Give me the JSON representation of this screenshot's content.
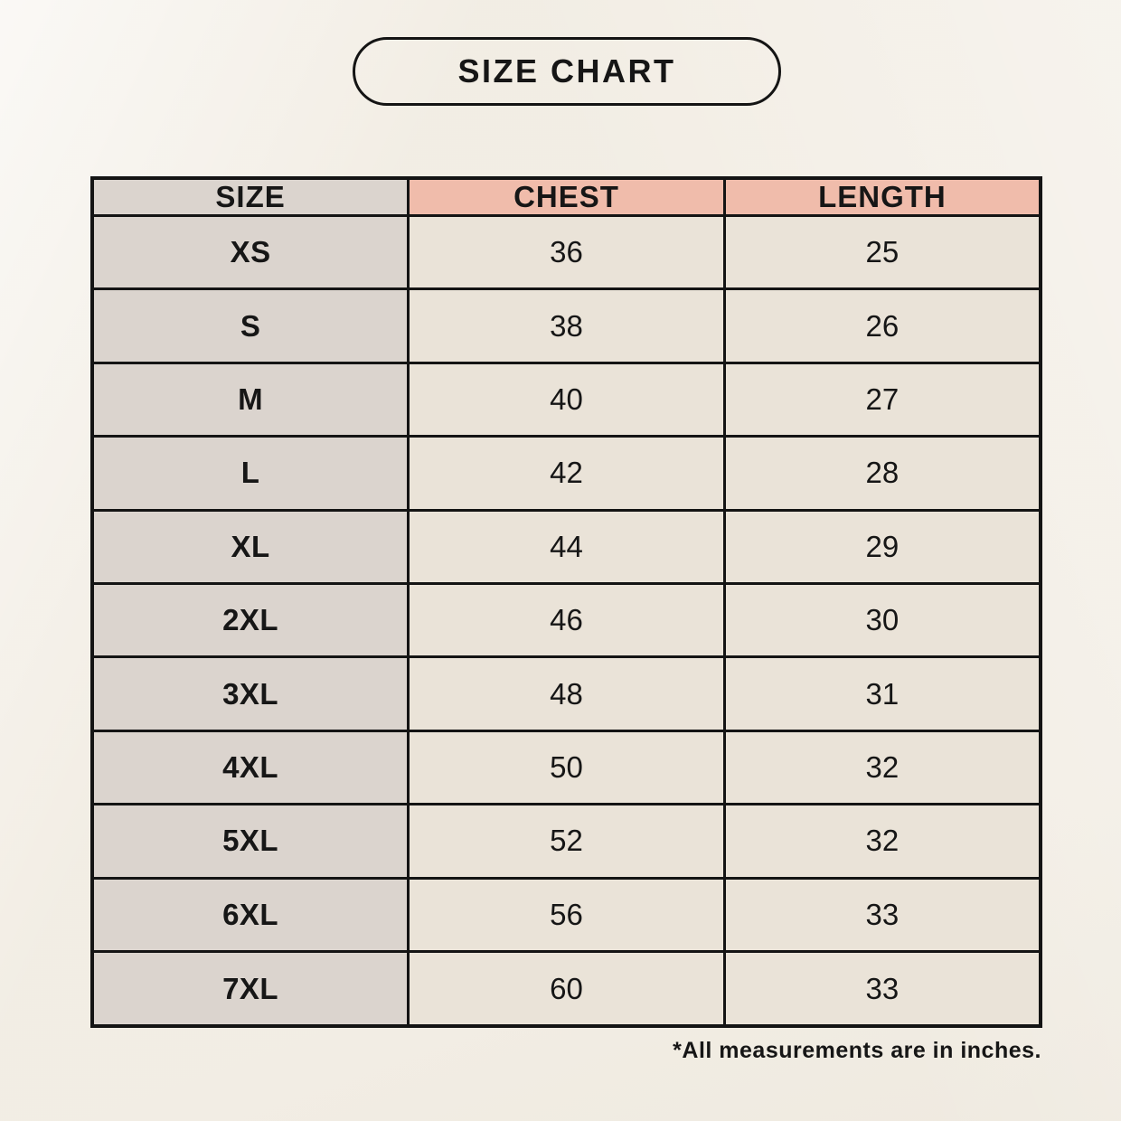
{
  "title": "SIZE CHART",
  "footnote": "*All measurements are in inches.",
  "colors": {
    "page_bg": "#f6f2ea",
    "header_pink": "#f0bcab",
    "col_gray": "#dbd4ce",
    "cell_cream": "#eae3d8",
    "border": "#141414",
    "text": "#161616"
  },
  "chart_data": {
    "type": "table",
    "title": "SIZE CHART",
    "units": "inches",
    "columns": [
      "SIZE",
      "CHEST",
      "LENGTH"
    ],
    "rows": [
      [
        "XS",
        "36",
        "25"
      ],
      [
        "S",
        "38",
        "26"
      ],
      [
        "M",
        "40",
        "27"
      ],
      [
        "L",
        "42",
        "28"
      ],
      [
        "XL",
        "44",
        "29"
      ],
      [
        "2XL",
        "46",
        "30"
      ],
      [
        "3XL",
        "48",
        "31"
      ],
      [
        "4XL",
        "50",
        "32"
      ],
      [
        "5XL",
        "52",
        "32"
      ],
      [
        "6XL",
        "56",
        "33"
      ],
      [
        "7XL",
        "60",
        "33"
      ]
    ],
    "footnote": "*All measurements are in inches."
  }
}
